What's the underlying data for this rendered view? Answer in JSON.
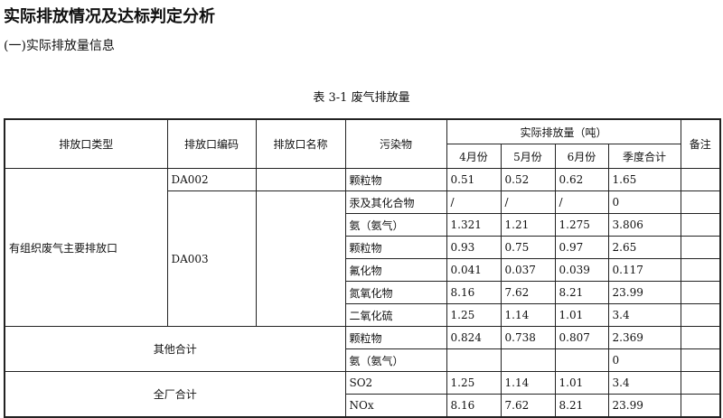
{
  "title": "实际排放情况及达标判定分析",
  "subtitle": "(一)实际排放量信息",
  "caption": "表 3-1 废气排放量",
  "headers": {
    "type": "排放口类型",
    "code": "排放口编码",
    "name": "排放口名称",
    "pollutant": "污染物",
    "actual": "实际排放量（吨）",
    "note": "备注",
    "months": [
      "4月份",
      "5月份",
      "6月份",
      "季度合计"
    ]
  },
  "groups": {
    "main_type": "有组织废气主要排放口",
    "da002": "DA002",
    "da003": "DA003",
    "other": "其他合计",
    "plant": "全厂合计"
  },
  "rows": [
    {
      "pollutant": "颗粒物",
      "v": [
        "0.51",
        "0.52",
        "0.62",
        "1.65"
      ]
    },
    {
      "pollutant": "汞及其化合物",
      "v": [
        "/",
        "/",
        "/",
        "0"
      ]
    },
    {
      "pollutant": "氨（氨气）",
      "v": [
        "1.321",
        "1.21",
        "1.275",
        "3.806"
      ]
    },
    {
      "pollutant": "颗粒物",
      "v": [
        "0.93",
        "0.75",
        "0.97",
        "2.65"
      ]
    },
    {
      "pollutant": "氟化物",
      "v": [
        "0.041",
        "0.037",
        "0.039",
        "0.117"
      ]
    },
    {
      "pollutant": "氮氧化物",
      "v": [
        "8.16",
        "7.62",
        "8.21",
        "23.99"
      ]
    },
    {
      "pollutant": "二氧化硫",
      "v": [
        "1.25",
        "1.14",
        "1.01",
        "3.4"
      ]
    },
    {
      "pollutant": "颗粒物",
      "v": [
        "0.824",
        "0.738",
        "0.807",
        "2.369"
      ]
    },
    {
      "pollutant": "氨（氨气）",
      "v": [
        "",
        "",
        "",
        "0"
      ]
    },
    {
      "pollutant": "SO2",
      "v": [
        "1.25",
        "1.14",
        "1.01",
        "3.4"
      ]
    },
    {
      "pollutant": "NOx",
      "v": [
        "8.16",
        "7.62",
        "8.21",
        "23.99"
      ]
    }
  ]
}
